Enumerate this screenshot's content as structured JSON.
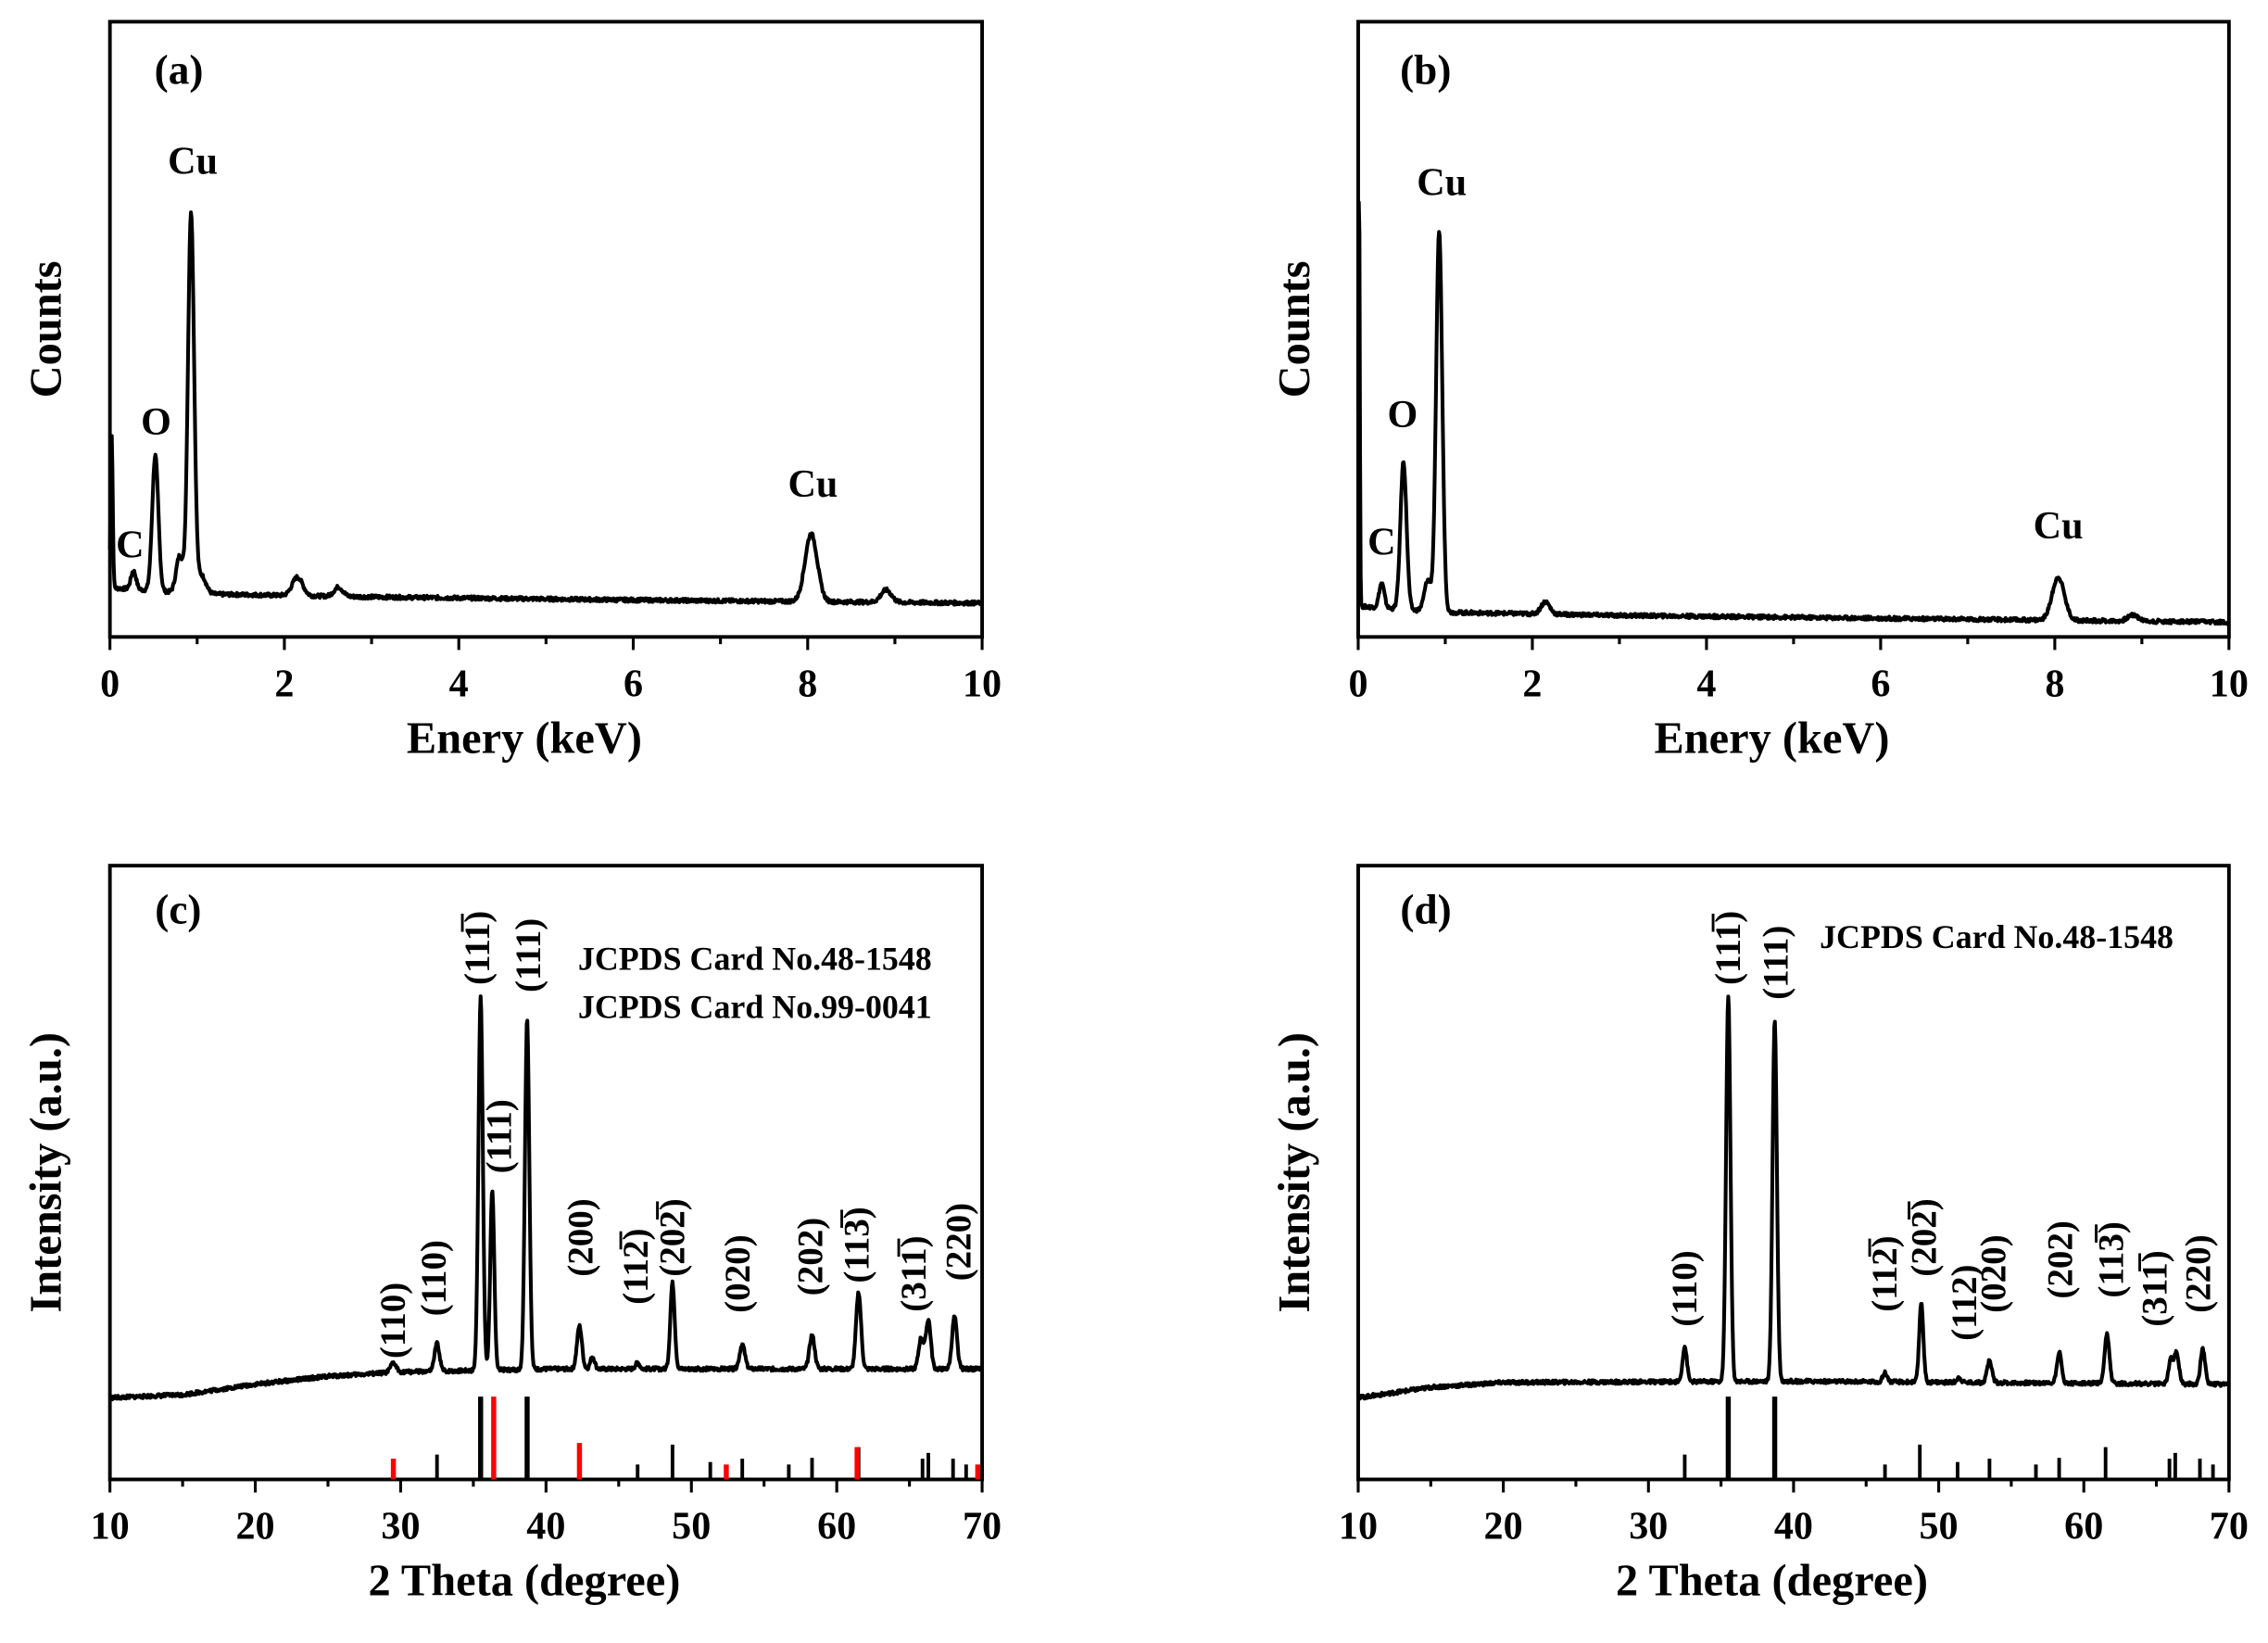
{
  "colors": {
    "line": "#000000",
    "reference_red": "#ff0000"
  },
  "chart_data": [
    {
      "panel": "(a)",
      "type": "line",
      "xlabel": "Enery (keV)",
      "ylabel": "Counts",
      "xlim": [
        0,
        10
      ],
      "ylim": [
        0,
        100
      ],
      "xticks": [
        0,
        2,
        4,
        6,
        8,
        10
      ],
      "xtick_labels": [
        "0",
        "2",
        "4",
        "6",
        "8",
        "10"
      ],
      "minor_step": 1,
      "baseline": [
        [
          0,
          8
        ],
        [
          1,
          7
        ],
        [
          3,
          6.5
        ],
        [
          6,
          6
        ],
        [
          10,
          5.5
        ]
      ],
      "peaks": [
        [
          0.02,
          25,
          0.012
        ],
        [
          0.27,
          3,
          0.03
        ],
        [
          0.52,
          22,
          0.035
        ],
        [
          0.8,
          6,
          0.04
        ],
        [
          0.93,
          62,
          0.035
        ],
        [
          1.05,
          3,
          0.05
        ],
        [
          2.15,
          3,
          0.06
        ],
        [
          2.62,
          1.5,
          0.05
        ],
        [
          8.04,
          11,
          0.07
        ],
        [
          8.9,
          2,
          0.06
        ]
      ],
      "annotations": [
        {
          "text": "Cu",
          "x": 0.95,
          "y": 75.3
        },
        {
          "text": "O",
          "x": 0.53,
          "y": 32.9
        },
        {
          "text": "C",
          "x": 0.23,
          "y": 12.9
        },
        {
          "text": "Cu",
          "x": 8.06,
          "y": 22.8
        }
      ],
      "panel_label_pos": [
        0.51,
        89.9
      ]
    },
    {
      "panel": "(b)",
      "type": "line",
      "xlabel": "Enery (keV)",
      "ylabel": "Counts",
      "xlim": [
        0,
        10
      ],
      "ylim": [
        0,
        100
      ],
      "xticks": [
        0,
        2,
        4,
        6,
        8,
        10
      ],
      "xtick_labels": [
        "0",
        "2",
        "4",
        "6",
        "8",
        "10"
      ],
      "minor_step": 1,
      "baseline": [
        [
          0,
          5
        ],
        [
          1,
          4
        ],
        [
          3,
          3.5
        ],
        [
          10,
          2.4
        ]
      ],
      "peaks": [
        [
          0.01,
          70,
          0.008
        ],
        [
          0.27,
          4,
          0.03
        ],
        [
          0.52,
          24,
          0.035
        ],
        [
          0.8,
          5,
          0.04
        ],
        [
          0.93,
          62,
          0.035
        ],
        [
          2.15,
          2,
          0.05
        ],
        [
          8.04,
          7,
          0.07
        ],
        [
          8.9,
          1,
          0.06
        ]
      ],
      "annotations": [
        {
          "text": "Cu",
          "x": 0.96,
          "y": 71.8
        },
        {
          "text": "O",
          "x": 0.51,
          "y": 34.1
        },
        {
          "text": "C",
          "x": 0.27,
          "y": 13.4
        },
        {
          "text": "Cu",
          "x": 8.04,
          "y": 16.0
        }
      ],
      "panel_label_pos": [
        0.48,
        89.9
      ]
    },
    {
      "panel": "(c)",
      "type": "line",
      "xlabel": "2 Theta (degree)",
      "ylabel": "Intensity (a.u.)",
      "xlim": [
        10,
        70
      ],
      "ylim": [
        0,
        100
      ],
      "xticks": [
        10,
        20,
        30,
        40,
        50,
        60,
        70
      ],
      "xtick_labels": [
        "10",
        "20",
        "30",
        "40",
        "50",
        "60",
        "70"
      ],
      "minor_step": 5,
      "baseline": [
        [
          10,
          13.3
        ],
        [
          15,
          13.8
        ],
        [
          20,
          15.5
        ],
        [
          25,
          16.8
        ],
        [
          30,
          17.5
        ],
        [
          40,
          18
        ],
        [
          70,
          18
        ]
      ],
      "peaks": [
        [
          29.5,
          1.5,
          0.2
        ],
        [
          32.5,
          4.5,
          0.17
        ],
        [
          35.5,
          61,
          0.15
        ],
        [
          36.3,
          29,
          0.14
        ],
        [
          38.7,
          57,
          0.15
        ],
        [
          42.3,
          7,
          0.17
        ],
        [
          43.2,
          2,
          0.15
        ],
        [
          46.3,
          1,
          0.15
        ],
        [
          48.7,
          14,
          0.15
        ],
        [
          53.5,
          4,
          0.18
        ],
        [
          58.3,
          5.5,
          0.18
        ],
        [
          61.5,
          12.5,
          0.17
        ],
        [
          65.8,
          5,
          0.17
        ],
        [
          66.3,
          8,
          0.17
        ],
        [
          68.1,
          8.5,
          0.17
        ]
      ],
      "references": [
        {
          "card": "JCPDS Card No.48-1548",
          "color": "#000000",
          "sticks": [
            [
              32.5,
              30
            ],
            [
              35.5,
              100
            ],
            [
              38.7,
              100
            ],
            [
              46.3,
              18
            ],
            [
              48.7,
              42
            ],
            [
              51.3,
              21
            ],
            [
              53.5,
              25
            ],
            [
              56.7,
              18
            ],
            [
              58.3,
              26
            ],
            [
              61.5,
              39
            ],
            [
              65.9,
              25
            ],
            [
              66.3,
              32
            ],
            [
              68.0,
              25
            ],
            [
              68.9,
              18
            ]
          ]
        },
        {
          "card": "JCPDS Card No.99-0041",
          "color": "#ff0000",
          "sticks": [
            [
              29.5,
              25
            ],
            [
              36.4,
              100
            ],
            [
              42.3,
              44
            ],
            [
              52.4,
              18
            ],
            [
              61.4,
              39
            ],
            [
              69.7,
              18
            ]
          ]
        }
      ],
      "legend_pos": [
        42.2,
        83.0
      ],
      "annotations": [
        {
          "text": "(110)",
          "x": 29.5,
          "y": 25.9,
          "color": "#ff0000"
        },
        {
          "text": "(110)",
          "x": 32.3,
          "y": 32.8
        },
        {
          "text": "(111̅)",
          "x": 35.3,
          "y": 86.6
        },
        {
          "text": "(111)",
          "x": 38.8,
          "y": 85.4
        },
        {
          "text": "(111)",
          "x": 36.8,
          "y": 55.9,
          "color": "#ff0000"
        },
        {
          "text": "(200)",
          "x": 42.4,
          "y": 39.4,
          "color": "#ff0000"
        },
        {
          "text": "(112̅)",
          "x": 46.2,
          "y": 34.7
        },
        {
          "text": "(202̅)",
          "x": 48.7,
          "y": 39.4
        },
        {
          "text": "(020)",
          "x": 53.2,
          "y": 33.5
        },
        {
          "text": "(202)",
          "x": 58.2,
          "y": 36.3
        },
        {
          "text": "(113̅)",
          "x": 61.4,
          "y": 38.2
        },
        {
          "text": "(311̅)",
          "x": 65.3,
          "y": 33.5
        },
        {
          "text": "(220)",
          "x": 68.4,
          "y": 38.7
        }
      ],
      "panel_label_pos": [
        13.1,
        90.6
      ]
    },
    {
      "panel": "(d)",
      "type": "line",
      "xlabel": "2 Theta (degree)",
      "ylabel": "Intensity (a.u.)",
      "xlim": [
        10,
        70
      ],
      "ylim": [
        0,
        100
      ],
      "xticks": [
        10,
        20,
        30,
        40,
        50,
        60,
        70
      ],
      "xtick_labels": [
        "10",
        "20",
        "30",
        "40",
        "50",
        "60",
        "70"
      ],
      "minor_step": 5,
      "baseline": [
        [
          10,
          13.3
        ],
        [
          15,
          15
        ],
        [
          20,
          15.8
        ],
        [
          40,
          16
        ],
        [
          70,
          15.5
        ]
      ],
      "peaks": [
        [
          32.5,
          5.7,
          0.15
        ],
        [
          35.5,
          63,
          0.15
        ],
        [
          38.7,
          59,
          0.15
        ],
        [
          46.3,
          1.5,
          0.15
        ],
        [
          48.8,
          13,
          0.14
        ],
        [
          51.4,
          0.8,
          0.15
        ],
        [
          53.5,
          3.5,
          0.17
        ],
        [
          58.3,
          5,
          0.16
        ],
        [
          61.6,
          8,
          0.16
        ],
        [
          66.0,
          4,
          0.16
        ],
        [
          66.4,
          5,
          0.16
        ],
        [
          68.2,
          5.7,
          0.16
        ]
      ],
      "references": [
        {
          "card": "JCPDS Card No.48-1548",
          "color": "#000000",
          "sticks": [
            [
              32.5,
              30
            ],
            [
              35.5,
              100
            ],
            [
              38.7,
              100
            ],
            [
              46.3,
              18
            ],
            [
              48.7,
              42
            ],
            [
              51.3,
              21
            ],
            [
              53.5,
              25
            ],
            [
              56.7,
              18
            ],
            [
              58.3,
              26
            ],
            [
              61.5,
              39
            ],
            [
              65.9,
              25
            ],
            [
              66.3,
              32
            ],
            [
              68.0,
              25
            ],
            [
              68.9,
              18
            ]
          ]
        }
      ],
      "legend_pos": [
        41.8,
        86.6
      ],
      "annotations": [
        {
          "text": "(110)",
          "x": 32.5,
          "y": 31.1
        },
        {
          "text": "(111̅)",
          "x": 35.5,
          "y": 86.6
        },
        {
          "text": "(111)",
          "x": 38.8,
          "y": 84.2
        },
        {
          "text": "(112̅)",
          "x": 46.3,
          "y": 33.5
        },
        {
          "text": "(202̅)",
          "x": 49.0,
          "y": 39.4
        },
        {
          "text": "(112)",
          "x": 51.8,
          "y": 28.8
        },
        {
          "text": "(020)",
          "x": 53.8,
          "y": 33.5
        },
        {
          "text": "(202)",
          "x": 58.4,
          "y": 35.8
        },
        {
          "text": "(113̅)",
          "x": 61.9,
          "y": 35.8
        },
        {
          "text": "(311̅)",
          "x": 64.9,
          "y": 31.1
        },
        {
          "text": "(220)",
          "x": 67.9,
          "y": 33.5
        }
      ],
      "panel_label_pos": [
        12.9,
        90.6
      ]
    }
  ]
}
